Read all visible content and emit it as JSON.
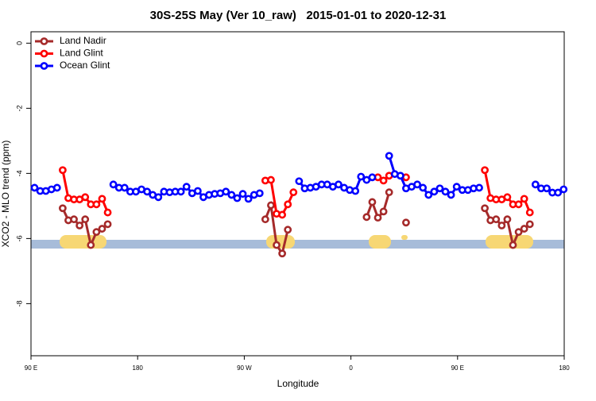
{
  "chart_data": {
    "type": "line",
    "title": "30S-25S May (Ver 10_raw)   2015-01-01 to 2020-12-31",
    "xlabel": "Longitude",
    "ylabel": "XCO2 - MLO trend (ppm)",
    "xlim": [
      90,
      540
    ],
    "ylim": [
      -9.6,
      0.35
    ],
    "xticks": [
      {
        "value": 90,
        "label": "90 E"
      },
      {
        "value": 180,
        "label": "180"
      },
      {
        "value": 270,
        "label": "90 W"
      },
      {
        "value": 360,
        "label": "0"
      },
      {
        "value": 450,
        "label": "90 E"
      },
      {
        "value": 540,
        "label": "180"
      }
    ],
    "yticks": [
      0,
      -2,
      -4,
      -6,
      -8
    ],
    "legend": "top-left",
    "x": [
      93,
      97.75,
      102.5,
      107.25,
      112,
      116.75,
      121.5,
      126.25,
      131,
      135.75,
      140.5,
      145.25,
      150,
      154.75,
      159.5,
      164.25,
      169,
      173.75,
      178.5,
      183.25,
      188,
      192.75,
      197.5,
      202.25,
      207,
      211.75,
      216.5,
      221.25,
      226,
      230.75,
      235.5,
      240.25,
      245,
      249.75,
      254.5,
      259.25,
      264,
      268.75,
      273.5,
      278.25,
      283,
      287.75,
      292.5,
      297.25,
      302,
      306.75,
      311.5,
      316.25,
      321,
      325.75,
      330.5,
      335.25,
      340,
      344.75,
      349.5,
      354.25,
      359,
      363.75,
      368.5,
      373.25,
      378,
      382.75,
      387.5,
      392.25,
      397,
      401.75,
      406.5,
      411.25,
      416,
      420.75,
      425.5,
      430.25,
      435,
      439.75,
      444.5,
      449.25,
      454,
      458.75,
      463.5,
      468.25,
      473,
      477.75,
      482.5,
      487.25,
      492,
      496.75,
      501.5,
      506.25,
      511,
      515.75,
      520.5,
      525.25,
      530,
      534.75,
      539.5
    ],
    "series": [
      {
        "name": "Land Nadir",
        "color": "#a52a2a",
        "values": [
          null,
          null,
          null,
          null,
          null,
          -5.07,
          -5.44,
          -5.41,
          -5.6,
          -5.41,
          -6.2,
          -5.8,
          -5.7,
          -5.56,
          null,
          null,
          null,
          null,
          null,
          null,
          null,
          null,
          null,
          null,
          null,
          null,
          null,
          null,
          null,
          null,
          null,
          null,
          null,
          null,
          null,
          null,
          null,
          null,
          null,
          null,
          null,
          -5.41,
          -4.98,
          -6.2,
          -6.46,
          -5.73,
          null,
          null,
          null,
          null,
          null,
          null,
          null,
          null,
          null,
          null,
          null,
          null,
          null,
          -5.34,
          -4.88,
          -5.36,
          -5.17,
          -4.58,
          null,
          null,
          -5.51,
          null,
          null,
          null,
          null,
          null,
          null,
          null,
          null,
          null,
          null,
          null,
          null,
          null,
          -5.07,
          -5.44,
          -5.41,
          -5.6,
          -5.41,
          -6.2,
          -5.8,
          -5.7,
          -5.56,
          null,
          null,
          null,
          null,
          null,
          null
        ]
      },
      {
        "name": "Land Glint",
        "color": "#ff0000",
        "values": [
          null,
          null,
          null,
          null,
          null,
          -3.9,
          -4.76,
          -4.8,
          -4.8,
          -4.73,
          -4.95,
          -4.95,
          -4.78,
          -5.2,
          null,
          null,
          null,
          null,
          null,
          null,
          null,
          null,
          null,
          null,
          null,
          null,
          null,
          null,
          null,
          null,
          null,
          null,
          null,
          null,
          null,
          null,
          null,
          null,
          null,
          null,
          null,
          -4.22,
          -4.2,
          -5.24,
          -5.27,
          -4.95,
          -4.58,
          null,
          null,
          null,
          null,
          null,
          null,
          null,
          null,
          null,
          null,
          null,
          null,
          null,
          null,
          -4.12,
          -4.22,
          -4.07,
          null,
          null,
          -4.12,
          null,
          null,
          null,
          null,
          null,
          null,
          null,
          null,
          null,
          null,
          null,
          null,
          null,
          -3.9,
          -4.76,
          -4.8,
          -4.8,
          -4.73,
          -4.95,
          -4.95,
          -4.78,
          -5.2,
          null,
          null,
          null,
          null,
          null,
          null
        ]
      },
      {
        "name": "Ocean Glint",
        "color": "#0000ff",
        "values": [
          -4.44,
          -4.54,
          -4.54,
          -4.49,
          -4.44,
          null,
          null,
          null,
          null,
          null,
          null,
          null,
          null,
          null,
          -4.34,
          -4.44,
          -4.44,
          -4.56,
          -4.56,
          -4.49,
          -4.56,
          -4.66,
          -4.73,
          -4.56,
          -4.58,
          -4.56,
          -4.56,
          -4.41,
          -4.61,
          -4.54,
          -4.73,
          -4.66,
          -4.63,
          -4.61,
          -4.56,
          -4.66,
          -4.76,
          -4.63,
          -4.78,
          -4.66,
          -4.61,
          null,
          null,
          null,
          null,
          null,
          null,
          -4.24,
          -4.46,
          -4.44,
          -4.41,
          -4.34,
          -4.34,
          -4.41,
          -4.34,
          -4.44,
          -4.51,
          -4.54,
          -4.1,
          -4.2,
          -4.12,
          null,
          null,
          -3.46,
          -4.02,
          -4.07,
          -4.46,
          -4.41,
          -4.34,
          -4.44,
          -4.66,
          -4.56,
          -4.46,
          -4.56,
          -4.66,
          -4.41,
          -4.51,
          -4.51,
          -4.46,
          -4.44,
          null,
          null,
          null,
          null,
          null,
          null,
          null,
          null,
          null,
          -4.34,
          -4.46,
          -4.46,
          -4.59,
          -4.59,
          -4.49
        ]
      }
    ]
  }
}
